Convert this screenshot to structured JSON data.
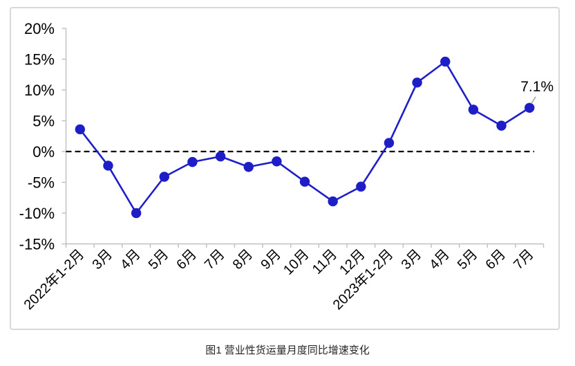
{
  "page": {
    "caption": "图1 营业性货运量月度同比增速变化"
  },
  "chart_data": {
    "type": "line",
    "title": "图1 营业性货运量月度同比增速变化",
    "categories": [
      "2022年1-2月",
      "3月",
      "4月",
      "5月",
      "6月",
      "7月",
      "8月",
      "9月",
      "10月",
      "11月",
      "12月",
      "2023年1-2月",
      "3月",
      "4月",
      "5月",
      "6月",
      "7月"
    ],
    "series": [
      {
        "name": "营业性货运量月度同比增速",
        "values": [
          3.6,
          -2.3,
          -10.0,
          -4.1,
          -1.7,
          -0.8,
          -2.5,
          -1.6,
          -4.9,
          -8.1,
          -5.7,
          1.4,
          11.2,
          14.6,
          6.8,
          4.2,
          7.1
        ]
      }
    ],
    "ylim": [
      -15,
      20
    ],
    "ytick_step": 5,
    "ytick_labels": [
      "20%",
      "15%",
      "10%",
      "5%",
      "0%",
      "-5%",
      "-10%",
      "-15%"
    ],
    "xlabel": "",
    "ylabel": "",
    "grid": false,
    "legend": "none",
    "zero_line_style": "dashed",
    "annotation": {
      "text": "7.1%",
      "point_index": 16
    },
    "colors": {
      "line": "#1E1EC8",
      "marker": "#1E1EC8",
      "axis": "#BFBFBF",
      "zero_line": "#000000",
      "annotation_text": "#000000",
      "leader_line": "#A6A6A6",
      "panel_border": "#D9D9D9",
      "label_text": "#000000"
    }
  }
}
